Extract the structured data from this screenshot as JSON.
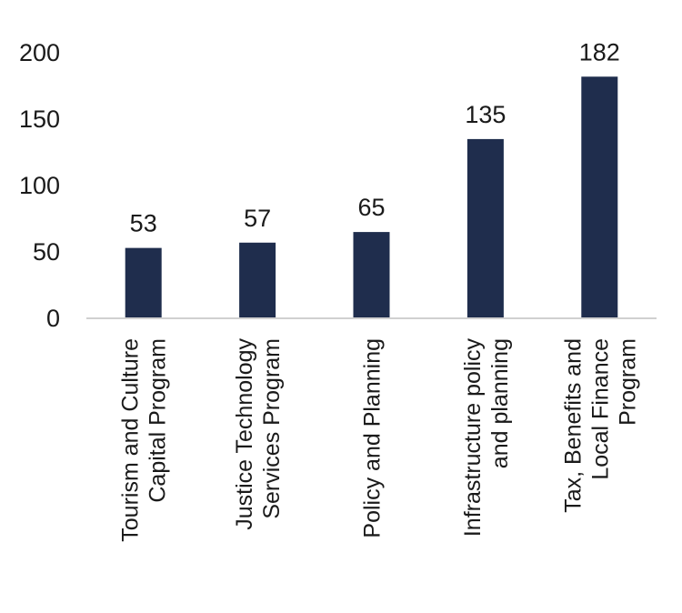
{
  "chart_data": {
    "type": "bar",
    "categories": [
      [
        "Tourism and Culture",
        "Capital Program"
      ],
      [
        "Justice Technology",
        "Services Program"
      ],
      [
        "Policy and Planning"
      ],
      [
        "Infrastructure policy",
        "and planning"
      ],
      [
        "Tax, Benefits and",
        "Local Finance",
        "Program"
      ]
    ],
    "values": [
      53,
      57,
      65,
      135,
      182
    ],
    "ylim": [
      0,
      200
    ],
    "yticks": [
      0,
      50,
      100,
      150,
      200
    ],
    "grid": false,
    "bar_color": "#1f2d4d",
    "axis_color": "#d0d0d0"
  }
}
